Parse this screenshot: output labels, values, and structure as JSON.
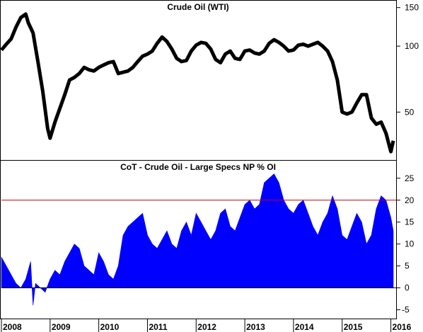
{
  "chart_data": [
    {
      "type": "line",
      "title": "Crude Oil (WTI)",
      "y_scale": "log",
      "ylim": [
        30,
        160
      ],
      "y_ticks": [
        50,
        100,
        150
      ],
      "x_range": [
        2008.0,
        2016.05
      ],
      "series": [
        {
          "color": "#000000",
          "x": [
            2008.0,
            2008.1,
            2008.2,
            2008.3,
            2008.4,
            2008.5,
            2008.55,
            2008.65,
            2008.75,
            2008.85,
            2008.95,
            2009.0,
            2009.1,
            2009.2,
            2009.3,
            2009.4,
            2009.5,
            2009.6,
            2009.7,
            2009.8,
            2009.9,
            2010.0,
            2010.1,
            2010.2,
            2010.3,
            2010.4,
            2010.5,
            2010.6,
            2010.7,
            2010.8,
            2010.9,
            2011.0,
            2011.1,
            2011.2,
            2011.3,
            2011.4,
            2011.5,
            2011.6,
            2011.7,
            2011.8,
            2011.9,
            2012.0,
            2012.1,
            2012.2,
            2012.3,
            2012.4,
            2012.5,
            2012.6,
            2012.7,
            2012.8,
            2012.9,
            2013.0,
            2013.1,
            2013.2,
            2013.3,
            2013.4,
            2013.5,
            2013.6,
            2013.7,
            2013.8,
            2013.9,
            2014.0,
            2014.1,
            2014.2,
            2014.3,
            2014.4,
            2014.5,
            2014.6,
            2014.7,
            2014.8,
            2014.9,
            2015.0,
            2015.1,
            2015.2,
            2015.3,
            2015.4,
            2015.5,
            2015.6,
            2015.7,
            2015.8,
            2015.9,
            2016.0,
            2016.05
          ],
          "values": [
            96,
            102,
            108,
            122,
            135,
            140,
            128,
            115,
            85,
            62,
            42,
            38,
            45,
            52,
            60,
            70,
            72,
            75,
            80,
            78,
            77,
            80,
            82,
            84,
            85,
            75,
            76,
            77,
            80,
            85,
            90,
            92,
            95,
            103,
            110,
            105,
            97,
            88,
            85,
            86,
            95,
            101,
            104,
            103,
            97,
            87,
            84,
            92,
            95,
            88,
            87,
            95,
            96,
            93,
            92,
            95,
            103,
            107,
            104,
            100,
            95,
            96,
            101,
            102,
            100,
            102,
            104,
            100,
            95,
            85,
            70,
            50,
            49,
            50,
            55,
            60,
            60,
            47,
            44,
            45,
            40,
            33,
            37
          ]
        }
      ]
    },
    {
      "type": "area",
      "title": "CoT - Crude Oil - Large Specs NP % OI",
      "ylim": [
        -7,
        29
      ],
      "y_ticks": [
        -5,
        0,
        5,
        10,
        15,
        20,
        25
      ],
      "reference_line": 20,
      "x_ticks": [
        "2008",
        "2009",
        "2010",
        "2011",
        "2012",
        "2013",
        "2014",
        "2015",
        "2016"
      ],
      "x_range": [
        2008.0,
        2016.05
      ],
      "series": [
        {
          "color": "#0000ff",
          "x": [
            2008.0,
            2008.1,
            2008.2,
            2008.3,
            2008.4,
            2008.5,
            2008.6,
            2008.65,
            2008.7,
            2008.8,
            2008.9,
            2009.0,
            2009.1,
            2009.2,
            2009.3,
            2009.4,
            2009.5,
            2009.6,
            2009.7,
            2009.8,
            2009.9,
            2010.0,
            2010.1,
            2010.2,
            2010.3,
            2010.4,
            2010.5,
            2010.6,
            2010.7,
            2010.8,
            2010.9,
            2011.0,
            2011.1,
            2011.2,
            2011.3,
            2011.4,
            2011.5,
            2011.6,
            2011.7,
            2011.8,
            2011.9,
            2012.0,
            2012.1,
            2012.2,
            2012.3,
            2012.4,
            2012.5,
            2012.6,
            2012.7,
            2012.8,
            2012.9,
            2013.0,
            2013.1,
            2013.2,
            2013.3,
            2013.4,
            2013.5,
            2013.6,
            2013.7,
            2013.8,
            2013.9,
            2014.0,
            2014.1,
            2014.2,
            2014.3,
            2014.4,
            2014.5,
            2014.6,
            2014.7,
            2014.8,
            2014.9,
            2015.0,
            2015.1,
            2015.2,
            2015.3,
            2015.4,
            2015.5,
            2015.6,
            2015.7,
            2015.8,
            2015.9,
            2016.0,
            2016.05
          ],
          "values": [
            7,
            5,
            3,
            1,
            0,
            2,
            6,
            -4,
            1,
            0,
            -1,
            2,
            4,
            3,
            6,
            8,
            10,
            9,
            5,
            4,
            3,
            8,
            6,
            3,
            2,
            5,
            12,
            14,
            15,
            16,
            17,
            12,
            10,
            9,
            11,
            13,
            10,
            9,
            13,
            15,
            12,
            17,
            15,
            13,
            11,
            13,
            17,
            18,
            14,
            13,
            16,
            19,
            20,
            18,
            19,
            24,
            25,
            26,
            24,
            20,
            18,
            17,
            19,
            20,
            17,
            14,
            12,
            15,
            17,
            21,
            18,
            12,
            11,
            14,
            17,
            15,
            10,
            12,
            18,
            21,
            20,
            16,
            13
          ]
        }
      ]
    }
  ]
}
